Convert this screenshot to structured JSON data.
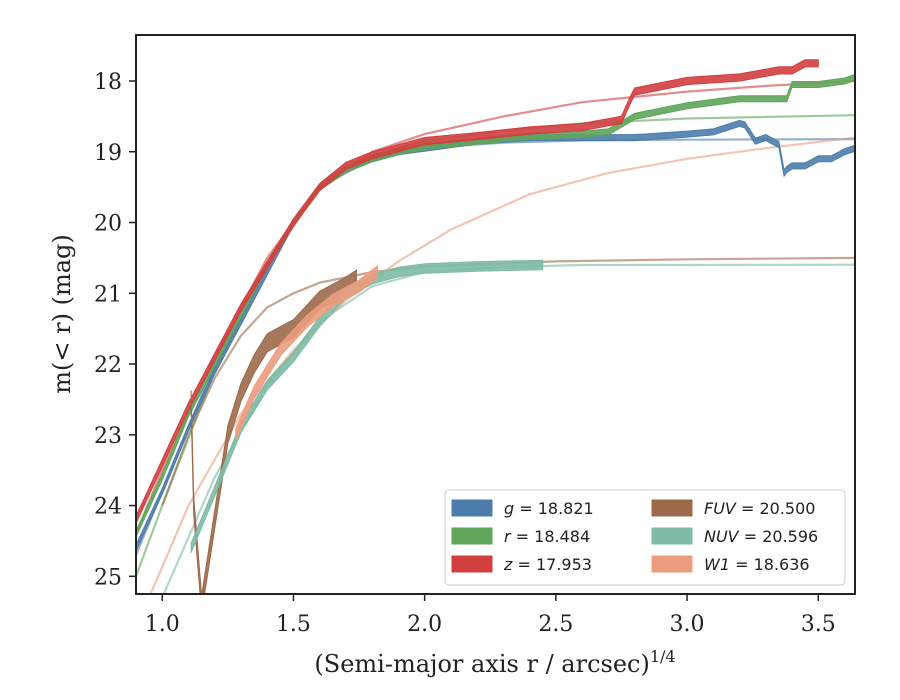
{
  "chart_data": {
    "type": "line",
    "xlabel": "(Semi-major axis r / arcsec)",
    "xlabel_exponent": "1/4",
    "ylabel": "m(< r) (mag)",
    "xlim": [
      0.9,
      3.64
    ],
    "ylim": [
      25.25,
      17.35
    ],
    "xticks": [
      "1.0",
      "1.5",
      "2.0",
      "2.5",
      "3.0",
      "3.5"
    ],
    "yticks": [
      "18",
      "19",
      "20",
      "21",
      "22",
      "23",
      "24",
      "25"
    ],
    "xtick_values": [
      1.0,
      1.5,
      2.0,
      2.5,
      3.0,
      3.5
    ],
    "ytick_values": [
      18,
      19,
      20,
      21,
      22,
      23,
      24,
      25
    ],
    "legend_position": "lower-right",
    "legend": [
      {
        "band": "g",
        "text": " = 18.821",
        "color": "#4c7dab"
      },
      {
        "band": "FUV",
        "text": " = 20.500",
        "color": "#9c6a4a"
      },
      {
        "band": "r",
        "text": " = 18.484",
        "color": "#5fa55a"
      },
      {
        "band": "NUV",
        "text": " = 20.596",
        "color": "#7dbba6"
      },
      {
        "band": "z",
        "text": " = 17.953",
        "color": "#d13f3f"
      },
      {
        "band": "W1",
        "text": " = 18.636",
        "color": "#ec9c7e"
      }
    ],
    "series": [
      {
        "name": "g",
        "color": "#4c7dab",
        "x": [
          0.9,
          1.0,
          1.1,
          1.2,
          1.3,
          1.4,
          1.5,
          1.6,
          1.7,
          1.8,
          1.9,
          2.0,
          2.2,
          2.4,
          2.6,
          2.8,
          3.0,
          3.1,
          3.2,
          3.22,
          3.26,
          3.3,
          3.35,
          3.37,
          3.38,
          3.4,
          3.45,
          3.5,
          3.55,
          3.6,
          3.64
        ],
        "y": [
          24.6,
          23.8,
          22.9,
          22.1,
          21.4,
          20.7,
          20.0,
          19.5,
          19.25,
          19.1,
          19.0,
          18.95,
          18.85,
          18.8,
          18.8,
          18.8,
          18.75,
          18.72,
          18.6,
          18.62,
          18.85,
          18.8,
          18.9,
          19.3,
          19.25,
          19.2,
          19.2,
          19.1,
          19.1,
          19.0,
          18.95
        ],
        "width": 1.0
      },
      {
        "name": "r",
        "color": "#5fa55a",
        "x": [
          0.9,
          1.0,
          1.1,
          1.2,
          1.3,
          1.4,
          1.5,
          1.6,
          1.7,
          1.8,
          1.9,
          2.0,
          2.2,
          2.4,
          2.6,
          2.7,
          2.8,
          3.0,
          3.2,
          3.38,
          3.4,
          3.5,
          3.6,
          3.64
        ],
        "y": [
          24.4,
          23.6,
          22.7,
          22.0,
          21.3,
          20.6,
          20.0,
          19.5,
          19.25,
          19.1,
          19.0,
          18.93,
          18.85,
          18.78,
          18.75,
          18.72,
          18.5,
          18.35,
          18.25,
          18.25,
          18.05,
          18.05,
          18.0,
          17.95
        ],
        "width": 1.0
      },
      {
        "name": "z",
        "color": "#d13f3f",
        "x": [
          0.9,
          1.0,
          1.1,
          1.2,
          1.3,
          1.4,
          1.5,
          1.6,
          1.7,
          1.8,
          1.9,
          2.0,
          2.2,
          2.4,
          2.6,
          2.75,
          2.78,
          2.8,
          3.0,
          3.2,
          3.35,
          3.4,
          3.45,
          3.5
        ],
        "y": [
          24.2,
          23.4,
          22.6,
          21.9,
          21.2,
          20.6,
          20.0,
          19.5,
          19.2,
          19.05,
          18.95,
          18.85,
          18.78,
          18.7,
          18.65,
          18.55,
          18.3,
          18.15,
          18.0,
          17.95,
          17.85,
          17.85,
          17.75,
          17.75
        ],
        "width": 1.2
      },
      {
        "name": "FUV",
        "color": "#9c6a4a",
        "x": [
          1.11,
          1.12,
          1.15,
          1.2,
          1.25,
          1.3,
          1.35,
          1.4,
          1.45,
          1.5,
          1.55,
          1.6,
          1.65,
          1.7,
          1.74
        ],
        "y": [
          22.5,
          24.0,
          25.4,
          24.2,
          23.0,
          22.4,
          22.0,
          21.7,
          21.6,
          21.5,
          21.3,
          21.1,
          21.0,
          20.9,
          20.8
        ],
        "width": 3.0
      },
      {
        "name": "NUV",
        "color": "#7dbba6",
        "x": [
          1.11,
          1.2,
          1.3,
          1.4,
          1.5,
          1.6,
          1.7,
          1.8,
          1.9,
          2.0,
          2.2,
          2.45
        ],
        "y": [
          24.6,
          23.8,
          22.9,
          22.3,
          21.9,
          21.4,
          21.0,
          20.8,
          20.7,
          20.65,
          20.62,
          20.6
        ],
        "width": 1.6
      },
      {
        "name": "W1",
        "color": "#ec9c7e",
        "x": [
          1.28,
          1.35,
          1.45,
          1.55,
          1.65,
          1.75,
          1.82
        ],
        "y": [
          23.0,
          22.4,
          21.8,
          21.4,
          21.1,
          20.9,
          20.7
        ],
        "width": 2.0
      }
    ],
    "models": [
      {
        "name": "g",
        "color": "#4c7dab",
        "asymptote": 18.821,
        "x": [
          0.9,
          1.0,
          1.2,
          1.4,
          1.6,
          1.8,
          2.0,
          2.3,
          2.6,
          3.0,
          3.64
        ],
        "y": [
          24.7,
          23.8,
          22.0,
          20.6,
          19.5,
          19.1,
          18.95,
          18.87,
          18.84,
          18.83,
          18.821
        ]
      },
      {
        "name": "r",
        "color": "#5fa55a",
        "asymptote": 18.484,
        "x": [
          0.9,
          1.0,
          1.2,
          1.4,
          1.6,
          1.8,
          2.0,
          2.3,
          2.6,
          3.0,
          3.64
        ],
        "y": [
          25.0,
          24.0,
          22.1,
          20.6,
          19.5,
          19.05,
          18.85,
          18.7,
          18.6,
          18.53,
          18.484
        ]
      },
      {
        "name": "z",
        "color": "#d13f3f",
        "asymptote": 17.953,
        "x": [
          0.9,
          1.0,
          1.2,
          1.4,
          1.6,
          1.8,
          2.0,
          2.3,
          2.6,
          3.0,
          3.3,
          3.64
        ],
        "y": [
          24.4,
          23.5,
          21.9,
          20.5,
          19.5,
          19.0,
          18.75,
          18.5,
          18.3,
          18.15,
          18.07,
          18.0
        ]
      },
      {
        "name": "FUV",
        "color": "#9c6a4a",
        "asymptote": 20.5,
        "x": [
          1.0,
          1.1,
          1.2,
          1.3,
          1.4,
          1.5,
          1.6,
          1.8,
          2.0,
          2.5,
          3.0,
          3.64
        ],
        "y": [
          24.0,
          23.0,
          22.2,
          21.6,
          21.2,
          21.0,
          20.85,
          20.7,
          20.62,
          20.55,
          20.52,
          20.5
        ]
      },
      {
        "name": "NUV",
        "color": "#7dbba6",
        "asymptote": 20.596,
        "x": [
          1.0,
          1.2,
          1.4,
          1.6,
          1.8,
          2.0,
          2.3,
          2.6,
          3.0,
          3.64
        ],
        "y": [
          25.3,
          23.6,
          22.3,
          21.4,
          20.9,
          20.7,
          20.63,
          20.6,
          20.6,
          20.596
        ]
      },
      {
        "name": "W1",
        "color": "#ec9c7e",
        "asymptote": 18.636,
        "x": [
          0.95,
          1.1,
          1.3,
          1.5,
          1.7,
          1.9,
          2.1,
          2.4,
          2.7,
          3.0,
          3.3,
          3.64
        ],
        "y": [
          25.3,
          24.0,
          22.7,
          21.8,
          21.1,
          20.55,
          20.1,
          19.6,
          19.3,
          19.1,
          18.95,
          18.8
        ]
      }
    ]
  }
}
